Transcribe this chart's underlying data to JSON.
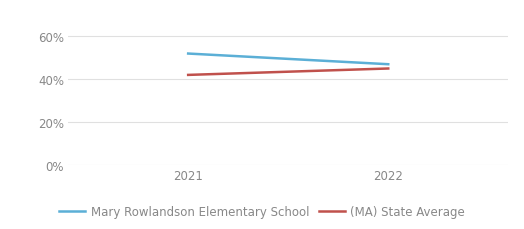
{
  "years": [
    2021,
    2022
  ],
  "school_values": [
    0.52,
    0.47
  ],
  "state_values": [
    0.42,
    0.45
  ],
  "school_label": "Mary Rowlandson Elementary School",
  "state_label": "(MA) State Average",
  "school_color": "#5BAFD6",
  "state_color": "#C0514C",
  "ylim": [
    0,
    0.7
  ],
  "yticks": [
    0.0,
    0.2,
    0.4,
    0.6
  ],
  "ytick_labels": [
    "0%",
    "20%",
    "40%",
    "60%"
  ],
  "xticks": [
    2021,
    2022
  ],
  "xlim": [
    2020.4,
    2022.6
  ],
  "grid_color": "#E0E0E0",
  "background_color": "#FFFFFF",
  "line_width": 1.8,
  "legend_fontsize": 8.5,
  "tick_fontsize": 8.5,
  "tick_color": "#888888"
}
